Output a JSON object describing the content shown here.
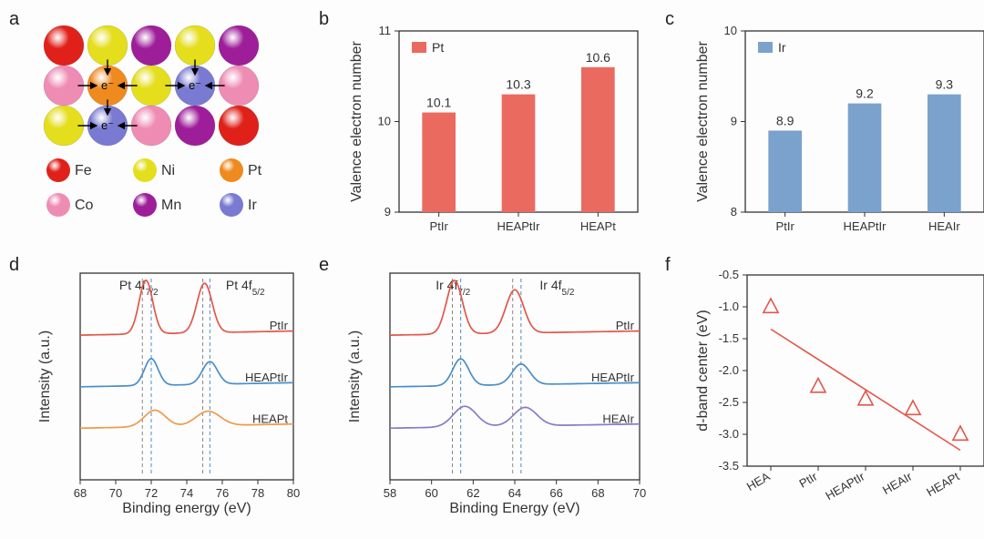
{
  "panel_labels": {
    "a": "a",
    "b": "b",
    "c": "c",
    "d": "d",
    "e": "e",
    "f": "f"
  },
  "atoms": {
    "legend": [
      {
        "name": "Fe",
        "color": "#e0211a"
      },
      {
        "name": "Ni",
        "color": "#e4de1c"
      },
      {
        "name": "Pt",
        "color": "#ee8a1e"
      },
      {
        "name": "Co",
        "color": "#ee8cb4"
      },
      {
        "name": "Mn",
        "color": "#9e1e9a"
      },
      {
        "name": "Ir",
        "color": "#7a7ad2"
      }
    ],
    "grid": [
      [
        "Fe",
        "Ni",
        "Mn",
        "Ni",
        "Mn"
      ],
      [
        "Co",
        "Pt",
        "Ni",
        "Ir",
        "Co"
      ],
      [
        "Ni",
        "Ir",
        "Co",
        "Mn",
        "Fe"
      ]
    ],
    "e_label": "e⁻",
    "arrow_targets": [
      [
        1,
        1
      ],
      [
        1,
        3
      ],
      [
        2,
        1
      ]
    ]
  },
  "chart_b": {
    "type": "bar",
    "ylabel": "Valence electron number",
    "legend": "Pt",
    "ylim": [
      9,
      11
    ],
    "ytick_step": 1,
    "categories": [
      "PtIr",
      "HEAPtIr",
      "HEAPt"
    ],
    "values": [
      10.1,
      10.3,
      10.6
    ],
    "labels": [
      "10.1",
      "10.3",
      "10.6"
    ],
    "bar_color": "#ea6a5f",
    "bar_width": 0.42
  },
  "chart_c": {
    "type": "bar",
    "ylabel": "Valence electron number",
    "legend": "Ir",
    "ylim": [
      8,
      10
    ],
    "ytick_step": 1,
    "categories": [
      "PtIr",
      "HEAPtIr",
      "HEAIr"
    ],
    "values": [
      8.9,
      9.2,
      9.3
    ],
    "labels": [
      "8.9",
      "9.2",
      "9.3"
    ],
    "bar_color": "#7ba2cc",
    "bar_width": 0.42
  },
  "chart_d": {
    "type": "xps",
    "xlabel": "Binding energy (eV)",
    "ylabel": "Intensity (a.u.)",
    "xlim": [
      68,
      80
    ],
    "xtick_step": 2,
    "peak_labels": [
      {
        "text": "Pt 4f",
        "sub": "7/2",
        "x": 70.2
      },
      {
        "text": "Pt 4f",
        "sub": "5/2",
        "x": 76.2
      }
    ],
    "dash_lines": [
      {
        "x": 71.5,
        "color": "#888"
      },
      {
        "x": 72.0,
        "color": "#4a8ec9"
      },
      {
        "x": 74.9,
        "color": "#888"
      },
      {
        "x": 75.3,
        "color": "#4a8ec9"
      }
    ],
    "series": [
      {
        "name": "PtIr",
        "color": "#e2574a",
        "baseline": 0.7,
        "peaks": [
          {
            "x": 71.7,
            "h": 0.26,
            "w": 0.9
          },
          {
            "x": 75.0,
            "h": 0.24,
            "w": 1.0
          }
        ]
      },
      {
        "name": "HEAPtIr",
        "color": "#4a8ec9",
        "baseline": 0.45,
        "peaks": [
          {
            "x": 72.0,
            "h": 0.13,
            "w": 0.9
          },
          {
            "x": 75.3,
            "h": 0.11,
            "w": 1.0
          }
        ]
      },
      {
        "name": "HEAPt",
        "color": "#ee9a4a",
        "baseline": 0.25,
        "peaks": [
          {
            "x": 72.2,
            "h": 0.08,
            "w": 1.4
          },
          {
            "x": 75.2,
            "h": 0.07,
            "w": 1.6
          }
        ]
      }
    ]
  },
  "chart_e": {
    "type": "xps",
    "xlabel": "Binding Energy (eV)",
    "ylabel": "Intensity (a.u.)",
    "xlim": [
      58,
      70
    ],
    "xtick_step": 2,
    "peak_labels": [
      {
        "text": "Ir 4f",
        "sub": "7/2",
        "x": 60.2
      },
      {
        "text": "Ir 4f",
        "sub": "5/2",
        "x": 65.2
      }
    ],
    "dash_lines": [
      {
        "x": 61.0,
        "color": "#888"
      },
      {
        "x": 61.4,
        "color": "#4a8ec9"
      },
      {
        "x": 63.9,
        "color": "#888"
      },
      {
        "x": 64.3,
        "color": "#4a8ec9"
      }
    ],
    "series": [
      {
        "name": "PtIr",
        "color": "#e2574a",
        "baseline": 0.7,
        "peaks": [
          {
            "x": 61.1,
            "h": 0.26,
            "w": 0.9
          },
          {
            "x": 64.0,
            "h": 0.21,
            "w": 1.0
          }
        ]
      },
      {
        "name": "HEAPtIr",
        "color": "#4a8ec9",
        "baseline": 0.45,
        "peaks": [
          {
            "x": 61.4,
            "h": 0.13,
            "w": 0.9
          },
          {
            "x": 64.3,
            "h": 0.1,
            "w": 1.0
          }
        ]
      },
      {
        "name": "HEAIr",
        "color": "#8a7ac8",
        "baseline": 0.25,
        "peaks": [
          {
            "x": 61.6,
            "h": 0.1,
            "w": 1.3
          },
          {
            "x": 64.5,
            "h": 0.09,
            "w": 1.3
          }
        ]
      }
    ]
  },
  "chart_f": {
    "type": "scatter",
    "ylabel": "d-band center (eV)",
    "ylim": [
      -3.5,
      -0.5
    ],
    "ytick_step": 0.5,
    "categories": [
      "HEA",
      "PtIr",
      "HEAPtIr",
      "HEAIr",
      "HEAPt"
    ],
    "values": [
      -1.0,
      -2.25,
      -2.45,
      -2.6,
      -3.0
    ],
    "marker": "triangle",
    "marker_color": "#e2574a",
    "marker_size": 9,
    "fit_line": {
      "color": "#e2574a",
      "y1": -1.35,
      "y2": -3.25
    }
  }
}
